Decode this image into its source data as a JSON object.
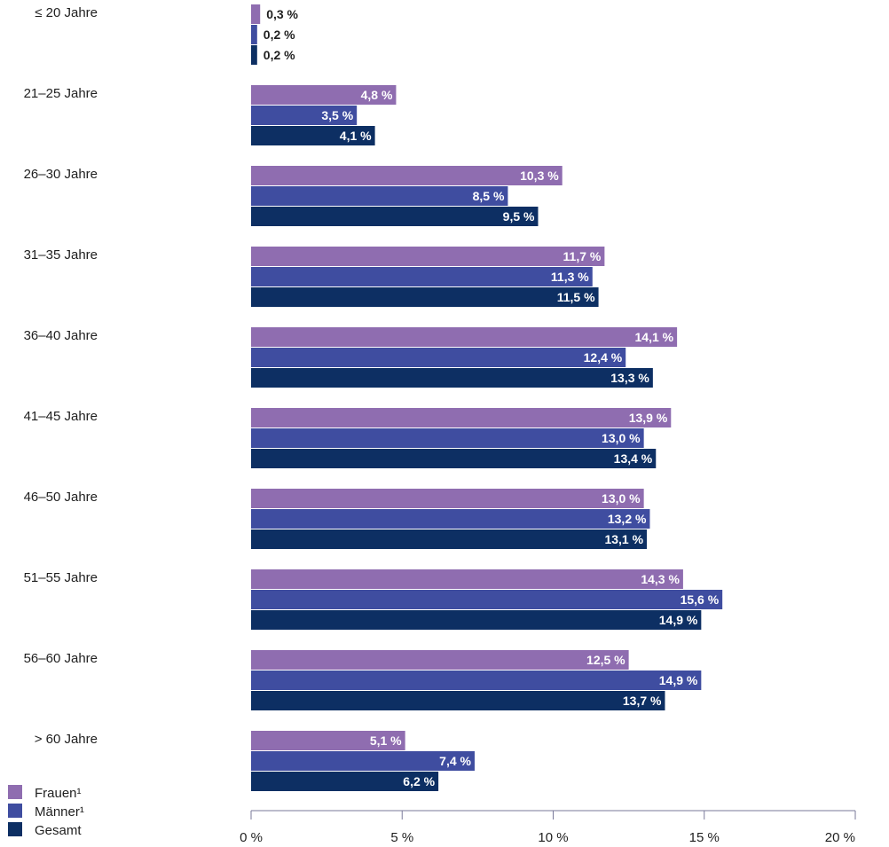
{
  "chart_data": {
    "type": "bar",
    "orientation": "horizontal",
    "categories": [
      "≤ 20 Jahre",
      "21–25 Jahre",
      "26–30 Jahre",
      "31–35 Jahre",
      "36–40 Jahre",
      "41–45 Jahre",
      "46–50 Jahre",
      "51–55 Jahre",
      "56–60 Jahre",
      "> 60 Jahre"
    ],
    "series": [
      {
        "name": "Frauen¹",
        "color": "#8f6db0",
        "values": [
          0.3,
          4.8,
          10.3,
          11.7,
          14.1,
          13.9,
          13.0,
          14.3,
          12.5,
          5.1
        ],
        "labels": [
          "0,3 %",
          "4,8 %",
          "10,3 %",
          "11,7 %",
          "14,1 %",
          "13,9 %",
          "13,0 %",
          "14,3 %",
          "12,5 %",
          "5,1 %"
        ]
      },
      {
        "name": "Männer¹",
        "color": "#3f4da0",
        "values": [
          0.2,
          3.5,
          8.5,
          11.3,
          12.4,
          13.0,
          13.2,
          15.6,
          14.9,
          7.4
        ],
        "labels": [
          "0,2 %",
          "3,5 %",
          "8,5 %",
          "11,3 %",
          "12,4 %",
          "13,0 %",
          "13,2 %",
          "15,6 %",
          "14,9 %",
          "7,4 %"
        ]
      },
      {
        "name": "Gesamt",
        "color": "#0d2f63",
        "values": [
          0.2,
          4.1,
          9.5,
          11.5,
          13.3,
          13.4,
          13.1,
          14.9,
          13.7,
          6.2
        ],
        "labels": [
          "0,2 %",
          "4,1 %",
          "9,5 %",
          "11,5 %",
          "13,3 %",
          "13,4 %",
          "13,1 %",
          "14,9 %",
          "13,7 %",
          "6,2 %"
        ]
      }
    ],
    "xlim": [
      0,
      20
    ],
    "x_ticks": [
      0,
      5,
      10,
      15,
      20
    ],
    "x_tick_labels": [
      "0 %",
      "5 %",
      "10 %",
      "15 %",
      "20 %"
    ],
    "grid": false,
    "legend_position": "bottom-left"
  }
}
